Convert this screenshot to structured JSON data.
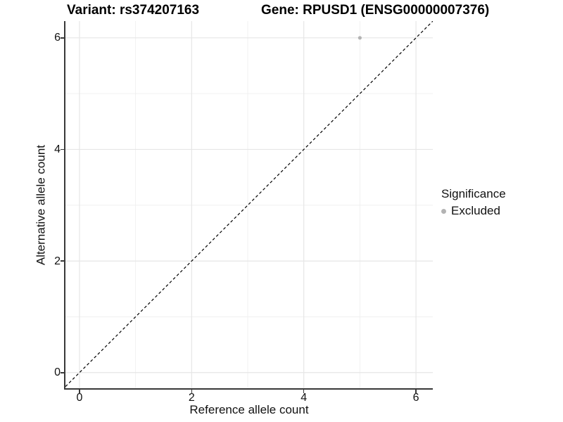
{
  "titles": {
    "variant": "Variant: rs374207163",
    "gene": "Gene: RPUSD1 (ENSG00000007376)"
  },
  "legend": {
    "title": "Significance",
    "items": [
      {
        "label": "Excluded",
        "color": "#b3b3b3"
      }
    ]
  },
  "chart_data": {
    "type": "scatter",
    "title": "Variant: rs374207163   Gene: RPUSD1 (ENSG00000007376)",
    "xlabel": "Reference allele count",
    "ylabel": "Alternative allele count",
    "xticks": [
      0,
      2,
      4,
      6
    ],
    "yticks": [
      0,
      2,
      4,
      6
    ],
    "xlim": [
      -0.25,
      6.3
    ],
    "ylim": [
      -0.28,
      6.3
    ],
    "grid": "major gridlines at 0,2,4,6 and minor gridlines at 1,3,5; light gray on white",
    "legend_position": "right",
    "series": [
      {
        "name": "Excluded",
        "color": "#b3b3b3",
        "points": [
          {
            "x": 5,
            "y": 6
          }
        ]
      }
    ],
    "reference_line": {
      "equation": "y = x",
      "style": "dashed",
      "color": "#000000"
    }
  },
  "colors": {
    "background": "#ffffff",
    "axis_line": "#383838",
    "grid_major": "#e6e6e6",
    "grid_minor": "#f0f0f0",
    "point_excluded": "#b3b3b3",
    "text": "#111111"
  }
}
